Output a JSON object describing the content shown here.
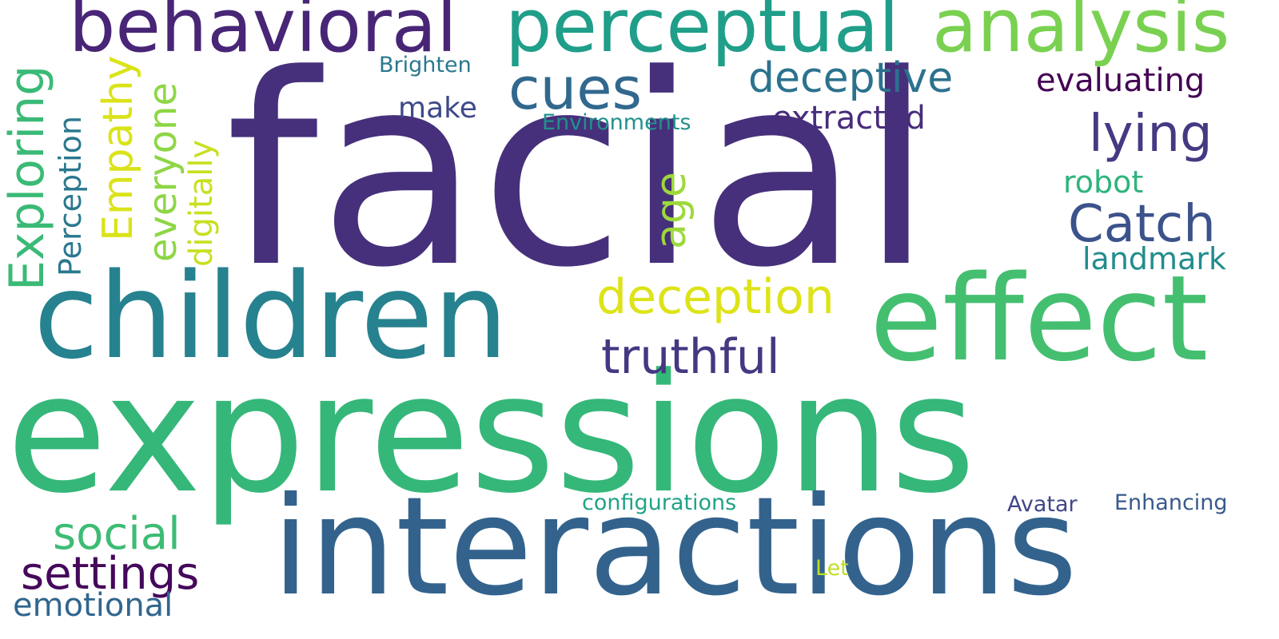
{
  "colors": {
    "background": "#ffffff"
  },
  "words": [
    {
      "key": "facial",
      "text": "facial",
      "color": "#46307b",
      "orientation": "horizontal"
    },
    {
      "key": "expressions",
      "text": "expressions",
      "color": "#35b779",
      "orientation": "horizontal"
    },
    {
      "key": "interactions",
      "text": "interactions",
      "color": "#33638d",
      "orientation": "horizontal"
    },
    {
      "key": "children",
      "text": "children",
      "color": "#26828e",
      "orientation": "horizontal"
    },
    {
      "key": "effect",
      "text": "effect",
      "color": "#44bf70",
      "orientation": "horizontal"
    },
    {
      "key": "behavioral",
      "text": "behavioral",
      "color": "#482576",
      "orientation": "horizontal"
    },
    {
      "key": "perceptual",
      "text": "perceptual",
      "color": "#1f9e89",
      "orientation": "horizontal"
    },
    {
      "key": "analysis",
      "text": "analysis",
      "color": "#7ad151",
      "orientation": "horizontal"
    },
    {
      "key": "cues",
      "text": "cues",
      "color": "#31688e",
      "orientation": "horizontal"
    },
    {
      "key": "deceptive",
      "text": "deceptive",
      "color": "#2c728e",
      "orientation": "horizontal"
    },
    {
      "key": "evaluating",
      "text": "evaluating",
      "color": "#440154",
      "orientation": "horizontal"
    },
    {
      "key": "lying",
      "text": "lying",
      "color": "#443a83",
      "orientation": "horizontal"
    },
    {
      "key": "Catch",
      "text": "Catch",
      "color": "#3b528b",
      "orientation": "horizontal"
    },
    {
      "key": "extracted",
      "text": "extracted",
      "color": "#472d7b",
      "orientation": "horizontal"
    },
    {
      "key": "make",
      "text": "make",
      "color": "#3e4989",
      "orientation": "horizontal"
    },
    {
      "key": "Brighten",
      "text": "Brighten",
      "color": "#2a788e",
      "orientation": "horizontal"
    },
    {
      "key": "Environments",
      "text": "Environments",
      "color": "#21918c",
      "orientation": "horizontal"
    },
    {
      "key": "robot",
      "text": "robot",
      "color": "#2fb47c",
      "orientation": "horizontal"
    },
    {
      "key": "landmark",
      "text": "landmark",
      "color": "#228c8d",
      "orientation": "horizontal"
    },
    {
      "key": "deception",
      "text": "deception",
      "color": "#dde318",
      "orientation": "horizontal"
    },
    {
      "key": "truthful",
      "text": "truthful",
      "color": "#453781",
      "orientation": "horizontal"
    },
    {
      "key": "social",
      "text": "social",
      "color": "#3dbc74",
      "orientation": "horizontal"
    },
    {
      "key": "settings",
      "text": "settings",
      "color": "#45085b",
      "orientation": "horizontal"
    },
    {
      "key": "emotional",
      "text": "emotional",
      "color": "#31668e",
      "orientation": "horizontal"
    },
    {
      "key": "configurations",
      "text": "configurations",
      "color": "#20a386",
      "orientation": "horizontal"
    },
    {
      "key": "Avatar",
      "text": "Avatar",
      "color": "#404688",
      "orientation": "horizontal"
    },
    {
      "key": "Enhancing",
      "text": "Enhancing",
      "color": "#38598c",
      "orientation": "horizontal"
    },
    {
      "key": "Let",
      "text": "Let",
      "color": "#c0df25",
      "orientation": "horizontal"
    },
    {
      "key": "Exploring",
      "text": "Exploring",
      "color": "#3aba76",
      "orientation": "vertical"
    },
    {
      "key": "Perception",
      "text": "Perception",
      "color": "#2a788e",
      "orientation": "vertical"
    },
    {
      "key": "Empathy",
      "text": "Empathy",
      "color": "#dae319",
      "orientation": "vertical"
    },
    {
      "key": "everyone",
      "text": "everyone",
      "color": "#8ed645",
      "orientation": "vertical"
    },
    {
      "key": "digitally",
      "text": "digitally",
      "color": "#c8e020",
      "orientation": "vertical"
    },
    {
      "key": "age",
      "text": "age",
      "color": "#9dd93b",
      "orientation": "vertical"
    }
  ]
}
